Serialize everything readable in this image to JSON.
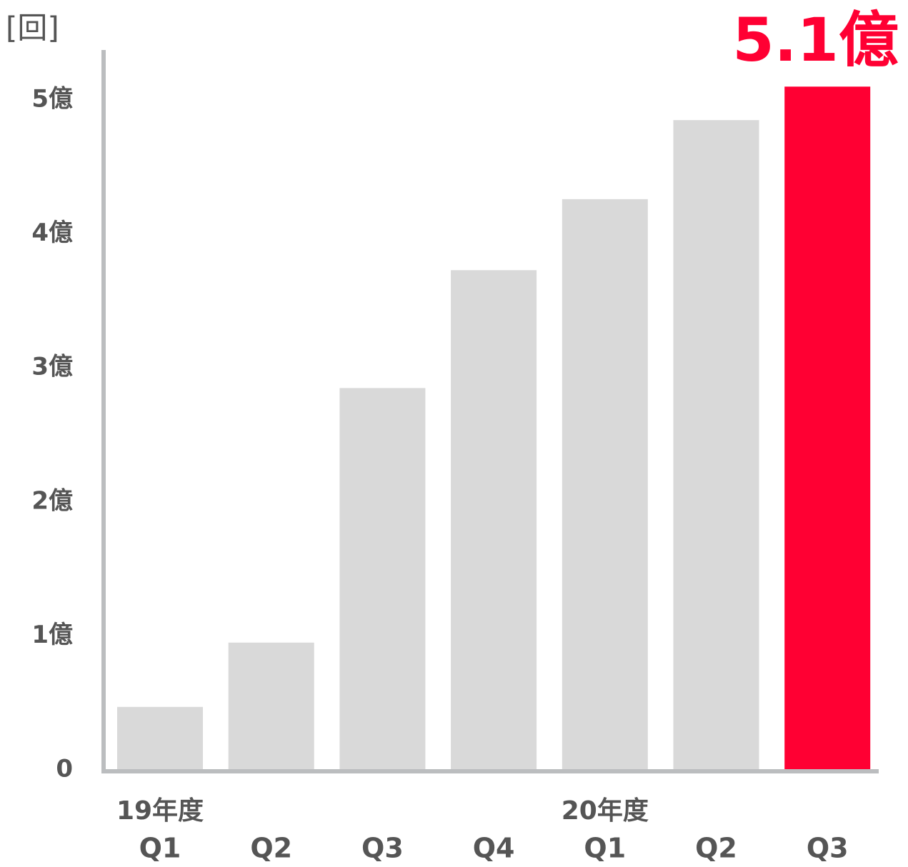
{
  "chart_data": {
    "type": "bar",
    "unit_label": "[回]",
    "categories": [
      "Q1",
      "Q2",
      "Q3",
      "Q4",
      "Q1",
      "Q2",
      "Q3"
    ],
    "group_labels": [
      "19年度",
      null,
      null,
      null,
      "20年度",
      null,
      null
    ],
    "values": [
      0.47,
      0.95,
      2.85,
      3.73,
      4.26,
      4.85,
      5.1
    ],
    "colors": [
      "#d9d9d9",
      "#d9d9d9",
      "#d9d9d9",
      "#d9d9d9",
      "#d9d9d9",
      "#d9d9d9",
      "#ff0033"
    ],
    "value_labels": [
      null,
      null,
      null,
      null,
      null,
      null,
      "5.1億"
    ],
    "value_label_color": "#ff0033",
    "ylim": [
      0,
      5.4
    ],
    "yticks": [
      0,
      {
        "value": 1,
        "label": "1億"
      },
      {
        "value": 2,
        "label": "2億"
      },
      {
        "value": 3,
        "label": "3億"
      },
      {
        "value": 4,
        "label": "4億"
      },
      {
        "value": 5,
        "label": "5億"
      }
    ],
    "grid": false
  }
}
